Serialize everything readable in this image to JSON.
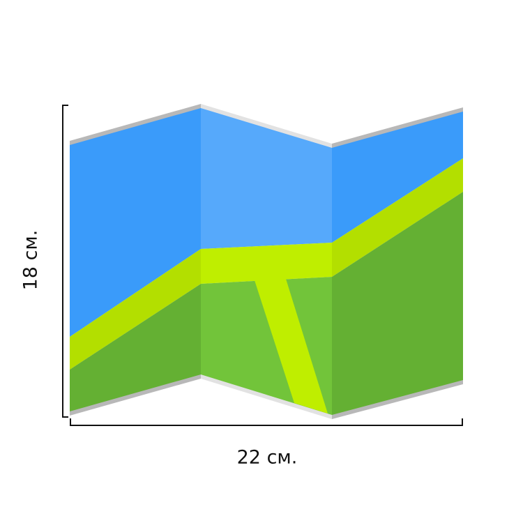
{
  "height_label": "18 см.",
  "width_label": "22 см."
}
